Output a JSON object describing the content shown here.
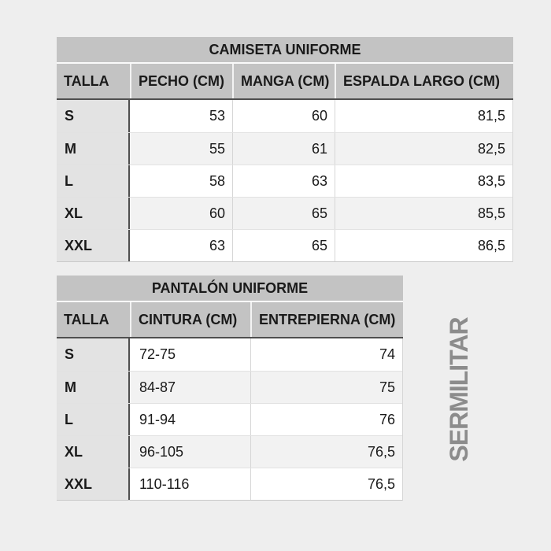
{
  "colors": {
    "page_bg": "#eeeeee",
    "header_bg": "#c3c3c3",
    "talla_bg": "#e3e3e3",
    "row_bg": "#ffffff",
    "row_alt_bg": "#f2f2f2",
    "dark_border": "#4f4f4f",
    "light_border": "#d6d6d6",
    "text": "#1a1a1a",
    "watermark": "#8c8c8c"
  },
  "watermark": {
    "text": "SERMILITAR"
  },
  "chart_data": [
    {
      "type": "table",
      "title": "CAMISETA UNIFORME",
      "columns": [
        "TALLA",
        "PECHO (CM)",
        "MANGA (CM)",
        "ESPALDA LARGO (CM)"
      ],
      "rows": [
        {
          "talla": "S",
          "values": [
            "53",
            "60",
            "81,5"
          ]
        },
        {
          "talla": "M",
          "values": [
            "55",
            "61",
            "82,5"
          ]
        },
        {
          "talla": "L",
          "values": [
            "58",
            "63",
            "83,5"
          ]
        },
        {
          "talla": "XL",
          "values": [
            "60",
            "65",
            "85,5"
          ]
        },
        {
          "talla": "XXL",
          "values": [
            "63",
            "65",
            "86,5"
          ]
        }
      ]
    },
    {
      "type": "table",
      "title": "PANTALÓN UNIFORME",
      "columns": [
        "TALLA",
        "CINTURA (CM)",
        "ENTREPIERNA (CM)"
      ],
      "rows": [
        {
          "talla": "S",
          "values": [
            "72-75",
            "74"
          ]
        },
        {
          "talla": "M",
          "values": [
            "84-87",
            "75"
          ]
        },
        {
          "talla": "L",
          "values": [
            "91-94",
            "76"
          ]
        },
        {
          "talla": "XL",
          "values": [
            "96-105",
            "76,5"
          ]
        },
        {
          "talla": "XXL",
          "values": [
            "110-116",
            "76,5"
          ]
        }
      ]
    }
  ]
}
